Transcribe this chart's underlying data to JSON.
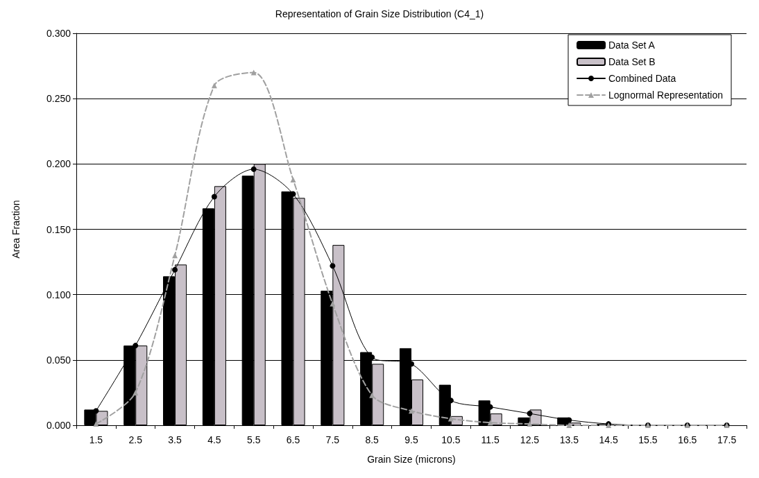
{
  "chart_data": {
    "type": "bar",
    "title": "Representation of Grain Size Distribution (C4_1)",
    "xlabel": "Grain Size (microns)",
    "ylabel": "Area Fraction",
    "categories": [
      "1.5",
      "2.5",
      "3.5",
      "4.5",
      "5.5",
      "6.5",
      "7.5",
      "8.5",
      "9.5",
      "10.5",
      "11.5",
      "12.5",
      "13.5",
      "14.5",
      "15.5",
      "16.5",
      "17.5"
    ],
    "series": [
      {
        "name": "Data Set A",
        "color": "#000000",
        "values": [
          0.012,
          0.061,
          0.114,
          0.166,
          0.191,
          0.179,
          0.103,
          0.056,
          0.059,
          0.031,
          0.019,
          0.006,
          0.006,
          0.001,
          0,
          0,
          0
        ]
      },
      {
        "name": "Data Set B",
        "color": "#c8c0c8",
        "values": [
          0.011,
          0.061,
          0.123,
          0.183,
          0.2,
          0.174,
          0.138,
          0.047,
          0.035,
          0.007,
          0.009,
          0.012,
          0.002,
          null,
          0,
          0,
          0
        ]
      },
      {
        "name": "Combined Data",
        "type": "line",
        "color": "#000000",
        "marker": "circle",
        "line_style": "solid",
        "values": [
          0.011,
          0.061,
          0.119,
          0.175,
          0.196,
          0.177,
          0.122,
          0.052,
          0.047,
          0.019,
          0.014,
          0.009,
          0.004,
          0.001,
          0,
          0,
          0
        ]
      },
      {
        "name": "Lognormal Representation",
        "type": "line",
        "color": "#a0a0a0",
        "marker": "triangle",
        "line_style": "dashed",
        "values": [
          0.001,
          0.025,
          0.13,
          0.26,
          0.27,
          0.188,
          0.093,
          0.023,
          0.011,
          0.005,
          0.002,
          0.001,
          0,
          0,
          0,
          0,
          0
        ]
      }
    ],
    "ylim": [
      0,
      0.3
    ],
    "yticks": [
      {
        "value": 0,
        "label": "0.000"
      },
      {
        "value": 0.05,
        "label": "0.050"
      },
      {
        "value": 0.1,
        "label": "0.100"
      },
      {
        "value": 0.15,
        "label": "0.150"
      },
      {
        "value": 0.2,
        "label": "0.200"
      },
      {
        "value": 0.25,
        "label": "0.250"
      },
      {
        "value": 0.3,
        "label": "0.300"
      }
    ],
    "grid": "y",
    "legend": "top right"
  }
}
